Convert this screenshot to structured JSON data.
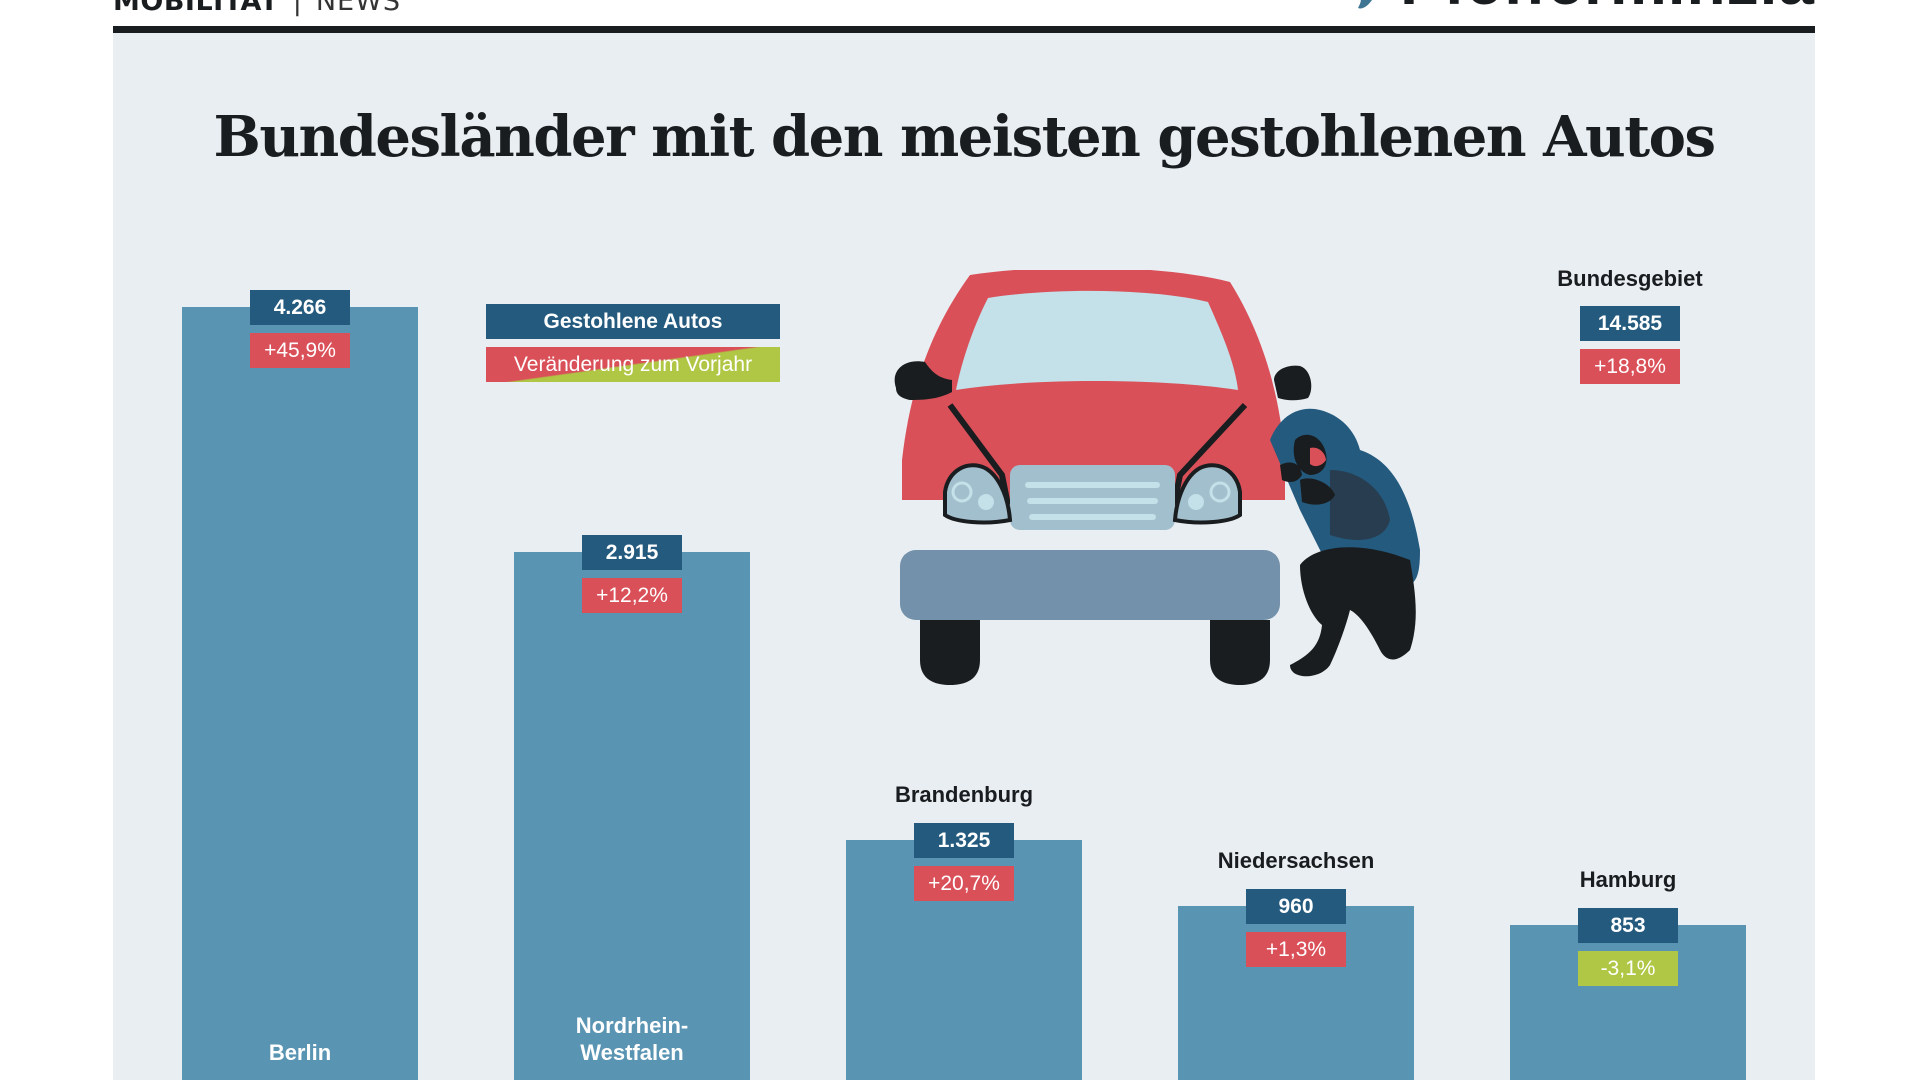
{
  "header": {
    "section": "MOBILITÄT",
    "separator": "|",
    "subsection": "NEWS",
    "logo_text": "Pfefferminzia",
    "logo_icon": "mint-leaf-icon"
  },
  "colors": {
    "panel_bg": "#e9eef2",
    "bar": "#5994b3",
    "value_box": "#235a7e",
    "increase": "#da5059",
    "decrease": "#afc744",
    "text_dark": "#1a1d1f"
  },
  "legend": {
    "stolen_label": "Gestohlene Autos",
    "change_label": "Veränderung zum Vorjahr"
  },
  "total": {
    "label": "Bundesgebiet",
    "value": "14.585",
    "change": "+18,8%"
  },
  "illustration": {
    "description": "car-thief-illustration"
  },
  "chart_data": {
    "type": "bar",
    "title": "Bundesländer mit den meisten gestohlenen Autos",
    "xlabel": "",
    "ylabel": "",
    "ylim": [
      0,
      4266
    ],
    "grid": false,
    "legend_position": "top-left",
    "categories": [
      "Berlin",
      "Nordrhein-Westfalen",
      "Brandenburg",
      "Niedersachsen",
      "Hamburg"
    ],
    "category_lines": [
      [
        "Berlin"
      ],
      [
        "Nordrhein-",
        "Westfalen"
      ],
      [
        "Brandenburg"
      ],
      [
        "Niedersachsen"
      ],
      [
        "Hamburg"
      ]
    ],
    "series": [
      {
        "name": "Gestohlene Autos",
        "values": [
          4266,
          2915,
          1325,
          960,
          853
        ]
      },
      {
        "name": "Veränderung zum Vorjahr",
        "values": [
          45.9,
          12.2,
          20.7,
          1.3,
          -3.1
        ],
        "unit": "%"
      }
    ],
    "value_labels": [
      "4.266",
      "2.915",
      "1.325",
      "960",
      "853"
    ],
    "change_labels": [
      "+45,9%",
      "+12,2%",
      "+20,7%",
      "+1,3%",
      "-3,1%"
    ],
    "label_placement": [
      "inside",
      "inside",
      "above",
      "above",
      "above"
    ]
  }
}
